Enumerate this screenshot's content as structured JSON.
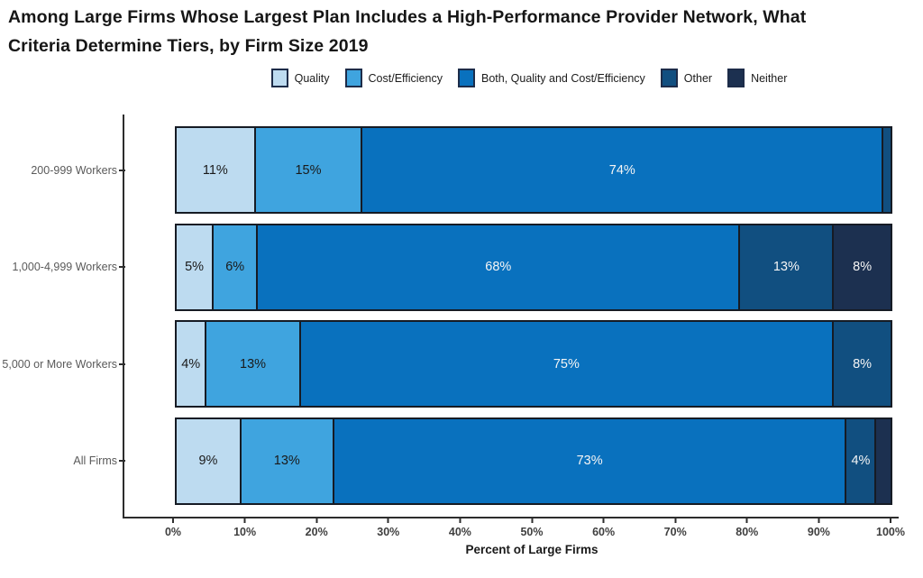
{
  "title": {
    "line1": "Among Large Firms Whose Largest Plan Includes a High-Performance Provider Network, What",
    "line2": "Criteria Determine Tiers, by Firm Size 2019"
  },
  "colors": {
    "quality": "#BDDBF0",
    "cost_efficiency": "#3FA4DF",
    "both": "#0971BE",
    "other": "#114F80",
    "neither": "#1C3050",
    "segment_border": "#161b24",
    "axis": "#2d2d2d"
  },
  "chart_data": {
    "type": "bar",
    "orientation": "horizontal",
    "stacked": true,
    "title": "Among Large Firms Whose Largest Plan Includes a High-Performance Provider Network, What Criteria Determine Tiers, by Firm Size 2019",
    "xlabel": "Percent of Large Firms",
    "xlim": [
      0,
      100
    ],
    "x_ticks": [
      "0%",
      "10%",
      "20%",
      "30%",
      "40%",
      "50%",
      "60%",
      "70%",
      "80%",
      "90%",
      "100%"
    ],
    "legend_position": "top-center",
    "grid": false,
    "categories": [
      "200-999 Workers",
      "1,000-4,999 Workers",
      "5,000 or More Workers",
      "All Firms"
    ],
    "series": [
      {
        "name": "Quality",
        "color": "#BDDBF0",
        "text_color": "#1a1a1a",
        "values": [
          11,
          5,
          4,
          9
        ]
      },
      {
        "name": "Cost/Efficiency",
        "color": "#3FA4DF",
        "text_color": "#1a1a1a",
        "values": [
          15,
          6,
          13,
          13
        ]
      },
      {
        "name": "Both, Quality and Cost/Efficiency",
        "color": "#0971BE",
        "text_color": "#f5f5f5",
        "values": [
          74,
          68,
          75,
          73
        ]
      },
      {
        "name": "Other",
        "color": "#114F80",
        "text_color": "#f5f5f5",
        "values": [
          1,
          13,
          8,
          4
        ]
      },
      {
        "name": "Neither",
        "color": "#1C3050",
        "text_color": "#f5f5f5",
        "values": [
          0,
          8,
          0,
          2
        ]
      }
    ],
    "segment_labels": [
      [
        "11%",
        "15%",
        "74%",
        "",
        ""
      ],
      [
        "5%",
        "6%",
        "68%",
        "13%",
        "8%"
      ],
      [
        "4%",
        "13%",
        "75%",
        "8%",
        ""
      ],
      [
        "9%",
        "13%",
        "73%",
        "4%",
        ""
      ]
    ]
  }
}
